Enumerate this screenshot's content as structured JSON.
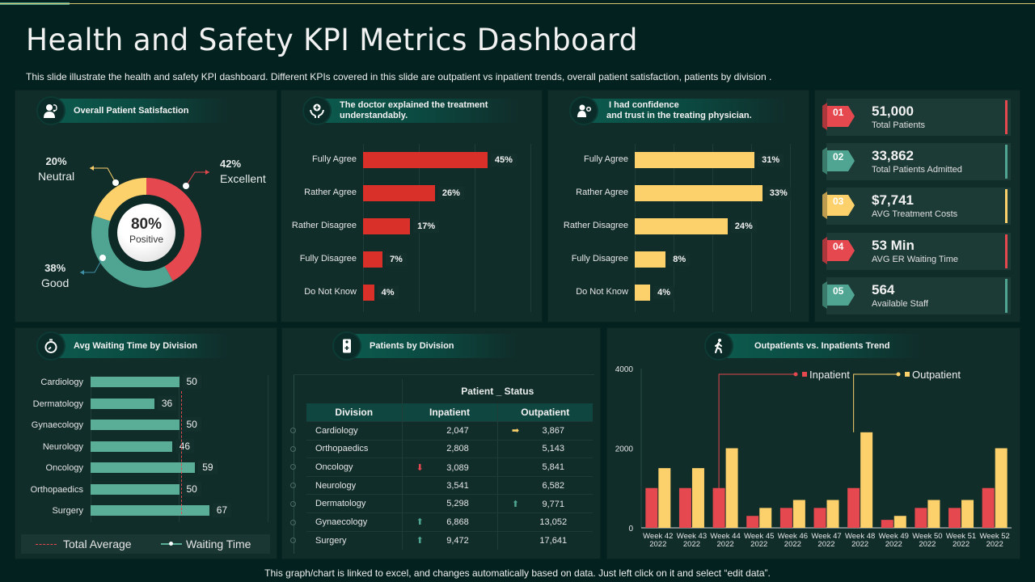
{
  "header": {
    "title": "Health and Safety KPI Metrics Dashboard",
    "subtitle": "This slide illustrate the health and safety KPI dashboard. Different KPIs covered in this slide are outpatient vs inpatient trends, overall patient satisfaction, patients by division ."
  },
  "colors": {
    "red": "#e5484f",
    "teal": "#4fa591",
    "yellow": "#fcd06a",
    "bar_red": "#d9312a",
    "bg": "#03221f",
    "panel": "#102d2a"
  },
  "satisfaction": {
    "title": "Overall Patient Satisfaction",
    "icon": "doctor-icon",
    "center_value": "80%",
    "center_label": "Positive",
    "slices": [
      {
        "label": "Excellent",
        "pct_label": "42%"
      },
      {
        "label": "Good",
        "pct_label": "38%"
      },
      {
        "label": "Neutral",
        "pct_label": "20%"
      }
    ]
  },
  "explained": {
    "title_line1": "The doctor explained the treatment",
    "title_line2": "understandably.",
    "icon": "care-hands-icon"
  },
  "confidence": {
    "title_line1": "I had confidence",
    "title_line2": "and trust in the treating physician.",
    "icon": "physician-icon"
  },
  "kpis": [
    {
      "id": "01",
      "value": "51,000",
      "label": "Total Patients",
      "color": "#e5484f"
    },
    {
      "id": "02",
      "value": "33,862",
      "label": "Total Patients  Admitted",
      "color": "#4fa591"
    },
    {
      "id": "03",
      "value": "$7,741",
      "label": "AVG Treatment Costs",
      "color": "#fcd06a"
    },
    {
      "id": "04",
      "value": "53 Min",
      "label": "AVG ER  Waiting  Time",
      "color": "#e5484f"
    },
    {
      "id": "05",
      "value": "564",
      "label": "Available Staff",
      "color": "#4fa591"
    }
  ],
  "waiting": {
    "title": "Avg Waiting Time by Division",
    "icon": "stopwatch-icon",
    "legend_avg": "Total  Average",
    "legend_wait": "Waiting Time"
  },
  "division_table": {
    "title": "Patients by Division",
    "icon": "medical-kit-icon",
    "group_header": "Patient _ Status",
    "columns": [
      "Division",
      "Inpatient",
      "Outpatient"
    ],
    "rows": [
      {
        "division": "Cardiology",
        "inpatient": "2,047",
        "outpatient": "3,867",
        "in_trend": "",
        "out_trend": "right"
      },
      {
        "division": "Orthopaedics",
        "inpatient": "2,808",
        "outpatient": "5,143",
        "in_trend": "",
        "out_trend": ""
      },
      {
        "division": "Oncology",
        "inpatient": "3,089",
        "outpatient": "5,841",
        "in_trend": "down",
        "out_trend": ""
      },
      {
        "division": "Neurology",
        "inpatient": "3,541",
        "outpatient": "6,582",
        "in_trend": "",
        "out_trend": ""
      },
      {
        "division": "Dermatology",
        "inpatient": "5,298",
        "outpatient": "9,771",
        "in_trend": "",
        "out_trend": "up"
      },
      {
        "division": "Gynaecology",
        "inpatient": "6,868",
        "outpatient": "13,052",
        "in_trend": "up",
        "out_trend": ""
      },
      {
        "division": "Surgery",
        "inpatient": "9,472",
        "outpatient": "17,641",
        "in_trend": "up",
        "out_trend": ""
      }
    ]
  },
  "trend": {
    "title": "Outpatients vs. Inpatients Trend",
    "icon": "walking-person-icon"
  },
  "footer": "This graph/chart is linked to excel,  and changes automatically based on data. Just left click on it and select “edit data”.",
  "chart_data": [
    {
      "type": "pie",
      "title": "Overall Patient Satisfaction",
      "categories": [
        "Excellent",
        "Good",
        "Neutral"
      ],
      "values": [
        42,
        38,
        20
      ],
      "colors": [
        "#e5484f",
        "#4fa591",
        "#fcd06a"
      ]
    },
    {
      "type": "bar",
      "orientation": "horizontal",
      "title": "The doctor explained the treatment understandably.",
      "categories": [
        "Fully Agree",
        "Rather Agree",
        "Rather Disagree",
        "Fully Disagree",
        "Do Not Know"
      ],
      "values": [
        45,
        26,
        17,
        7,
        4
      ],
      "value_labels": [
        "45%",
        "26%",
        "17%",
        "7%",
        "4%"
      ],
      "xlim": [
        0,
        60
      ],
      "color": "#d9312a"
    },
    {
      "type": "bar",
      "orientation": "horizontal",
      "title": "I had confidence and trust in the treating physician.",
      "categories": [
        "Fully Agree",
        "Rather Agree",
        "Rather Disagree",
        "Fully Disagree",
        "Do Not Know"
      ],
      "values": [
        31,
        33,
        24,
        8,
        4
      ],
      "value_labels": [
        "31%",
        "33%",
        "24%",
        "8%",
        "4%"
      ],
      "xlim": [
        0,
        40
      ],
      "color": "#fcd06a"
    },
    {
      "type": "bar",
      "orientation": "horizontal",
      "title": "Avg Waiting Time by Division",
      "categories": [
        "Cardiology",
        "Dermatology",
        "Gynaecology",
        "Neurology",
        "Oncology",
        "Orthopaedics",
        "Surgery"
      ],
      "values": [
        50,
        36,
        50,
        46,
        59,
        50,
        67
      ],
      "total_average": 51,
      "xlim": [
        0,
        100
      ],
      "legend": [
        "Total  Average",
        "Waiting Time"
      ],
      "color": "#5aae98"
    },
    {
      "type": "bar",
      "title": "Outpatients vs. Inpatients Trend",
      "categories": [
        "Week 42|2022",
        "Week 43|2022",
        "Week 44|2022",
        "Week 45|2022",
        "Week 46|2022",
        "Week 47|2022",
        "Week 48|2022",
        "Week 49|2022",
        "Week 50|2022",
        "Week 51|2022",
        "Week 52|2022"
      ],
      "series": [
        {
          "name": "Inpatient",
          "color": "#e5484f",
          "values": [
            1000,
            1000,
            1000,
            300,
            500,
            500,
            1000,
            200,
            500,
            500,
            1000
          ]
        },
        {
          "name": "Outpatient",
          "color": "#fcd06a",
          "values": [
            1500,
            1500,
            2000,
            500,
            700,
            700,
            2400,
            300,
            700,
            700,
            2000
          ]
        }
      ],
      "ylim": [
        0,
        4000
      ],
      "yticks": [
        0,
        2000,
        4000
      ],
      "legend": "top-right"
    }
  ]
}
